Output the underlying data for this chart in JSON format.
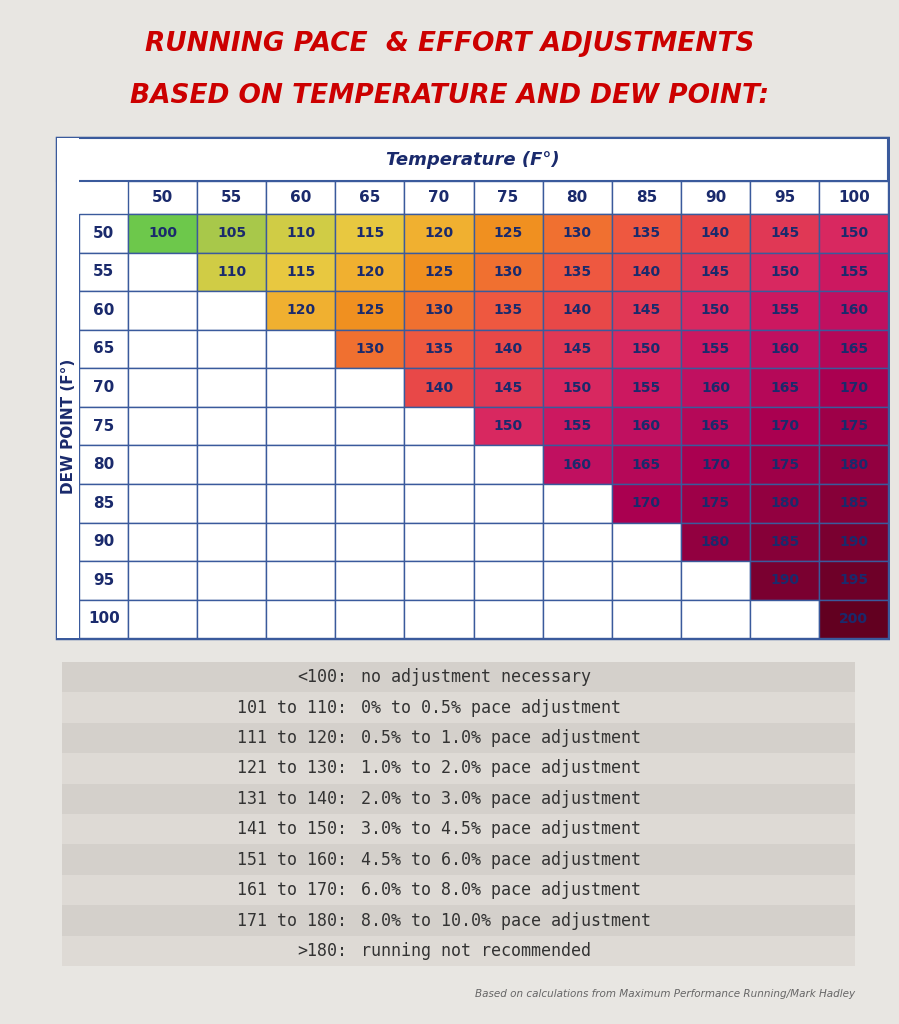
{
  "title_line1": "RUNNING PACE  & EFFORT ADJUSTMENTS",
  "title_line2": "BASED ON TEMPERATURE AND DEW POINT:",
  "title_color": "#CC0000",
  "bg_color": "#e8e6e2",
  "table_bg": "#ffffff",
  "temp_label": "Temperature (F°)",
  "dew_label": "DEW POINT (F°)",
  "temp_cols": [
    50,
    55,
    60,
    65,
    70,
    75,
    80,
    85,
    90,
    95,
    100
  ],
  "dew_rows": [
    50,
    55,
    60,
    65,
    70,
    75,
    80,
    85,
    90,
    95,
    100
  ],
  "table_data": [
    [
      100,
      105,
      110,
      115,
      120,
      125,
      130,
      135,
      140,
      145,
      150
    ],
    [
      null,
      110,
      115,
      120,
      125,
      130,
      135,
      140,
      145,
      150,
      155
    ],
    [
      null,
      null,
      120,
      125,
      130,
      135,
      140,
      145,
      150,
      155,
      160
    ],
    [
      null,
      null,
      null,
      130,
      135,
      140,
      145,
      150,
      155,
      160,
      165
    ],
    [
      null,
      null,
      null,
      null,
      140,
      145,
      150,
      155,
      160,
      165,
      170
    ],
    [
      null,
      null,
      null,
      null,
      null,
      150,
      155,
      160,
      165,
      170,
      175
    ],
    [
      null,
      null,
      null,
      null,
      null,
      null,
      160,
      165,
      170,
      175,
      180
    ],
    [
      null,
      null,
      null,
      null,
      null,
      null,
      null,
      170,
      175,
      180,
      185
    ],
    [
      null,
      null,
      null,
      null,
      null,
      null,
      null,
      null,
      180,
      185,
      190
    ],
    [
      null,
      null,
      null,
      null,
      null,
      null,
      null,
      null,
      null,
      190,
      195
    ],
    [
      null,
      null,
      null,
      null,
      null,
      null,
      null,
      null,
      null,
      null,
      200
    ]
  ],
  "color_map": {
    "100": "#6DC84B",
    "105": "#A8C84A",
    "110": "#D0CC45",
    "115": "#E8C840",
    "120": "#F0B030",
    "125": "#F09020",
    "130": "#F07030",
    "135": "#EE5840",
    "140": "#E84848",
    "145": "#E03855",
    "150": "#D82860",
    "155": "#CC1860",
    "160": "#C01060",
    "165": "#B50858",
    "170": "#AA0050",
    "175": "#9E0048",
    "180": "#920040",
    "185": "#860038",
    "190": "#7A0030",
    "195": "#6E0028",
    "200": "#620020"
  },
  "legend_rows": [
    [
      "<100:",
      "no adjustment necessary"
    ],
    [
      "101 to 110:",
      "0% to 0.5% pace adjustment"
    ],
    [
      "111 to 120:",
      "0.5% to 1.0% pace adjustment"
    ],
    [
      "121 to 130:",
      "1.0% to 2.0% pace adjustment"
    ],
    [
      "131 to 140:",
      "2.0% to 3.0% pace adjustment"
    ],
    [
      "141 to 150:",
      "3.0% to 4.5% pace adjustment"
    ],
    [
      "151 to 160:",
      "4.5% to 6.0% pace adjustment"
    ],
    [
      "161 to 170:",
      "6.0% to 8.0% pace adjustment"
    ],
    [
      "171 to 180:",
      "8.0% to 10.0% pace adjustment"
    ],
    [
      ">180:",
      "running not recommended"
    ]
  ],
  "footer": "Based on calculations from Maximum Performance Running/Mark Hadley",
  "header_text_color": "#1a2a6c",
  "cell_text_color": "#1a2a6c",
  "table_border_color": "#3a5a9c",
  "legend_bg_alt1": "#d4d0cb",
  "legend_bg_alt2": "#dedad5",
  "legend_text_color": "#333333",
  "legend_font_size": 12
}
